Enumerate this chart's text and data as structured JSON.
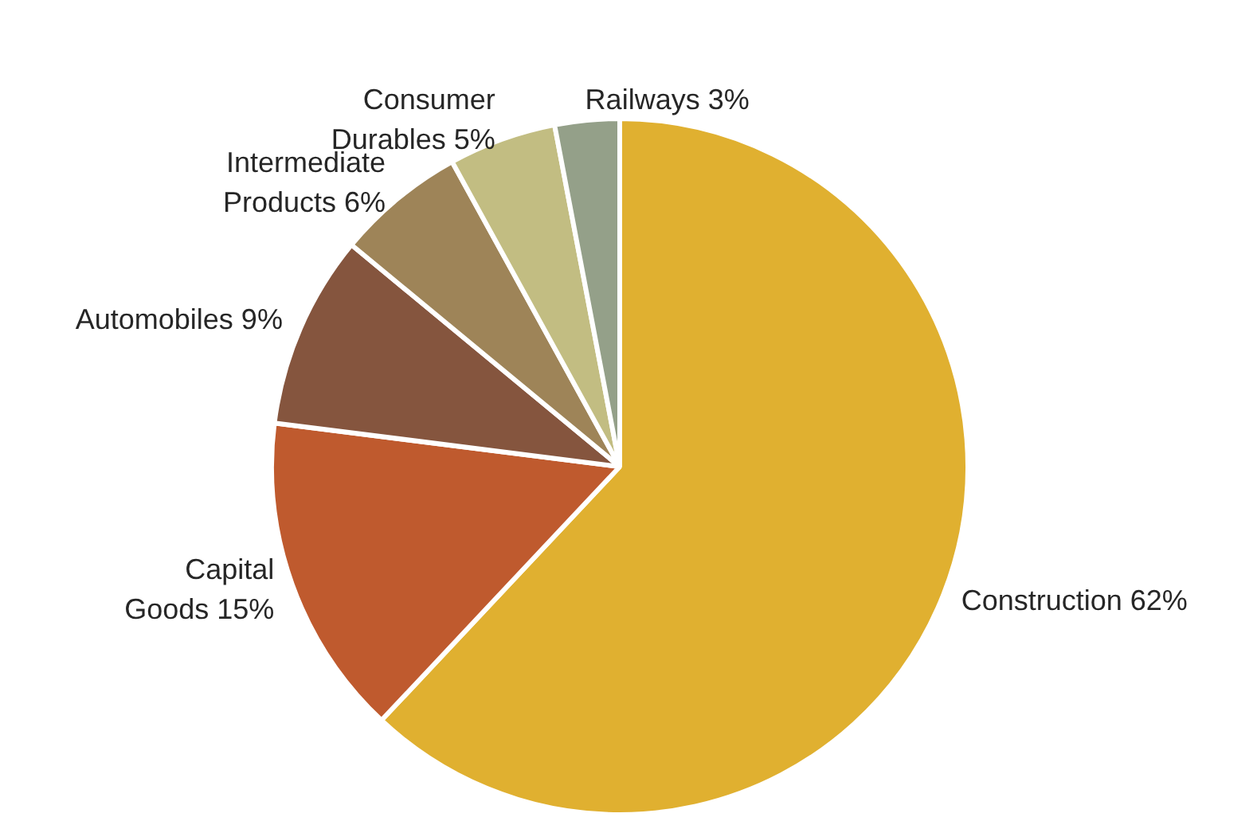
{
  "chart_data": {
    "type": "pie",
    "categories": [
      "Construction",
      "Capital Goods",
      "Automobiles",
      "Intermediate Products",
      "Consumer Durables",
      "Railways"
    ],
    "values": [
      62,
      15,
      9,
      6,
      5,
      3
    ],
    "value_labels": [
      "62%",
      "15%",
      "9%",
      "6%",
      "5%",
      "3%"
    ],
    "colors": [
      "#e0b030",
      "#bf5a2e",
      "#85553e",
      "#9e8458",
      "#c2bd82",
      "#94a089"
    ],
    "legend": false
  }
}
